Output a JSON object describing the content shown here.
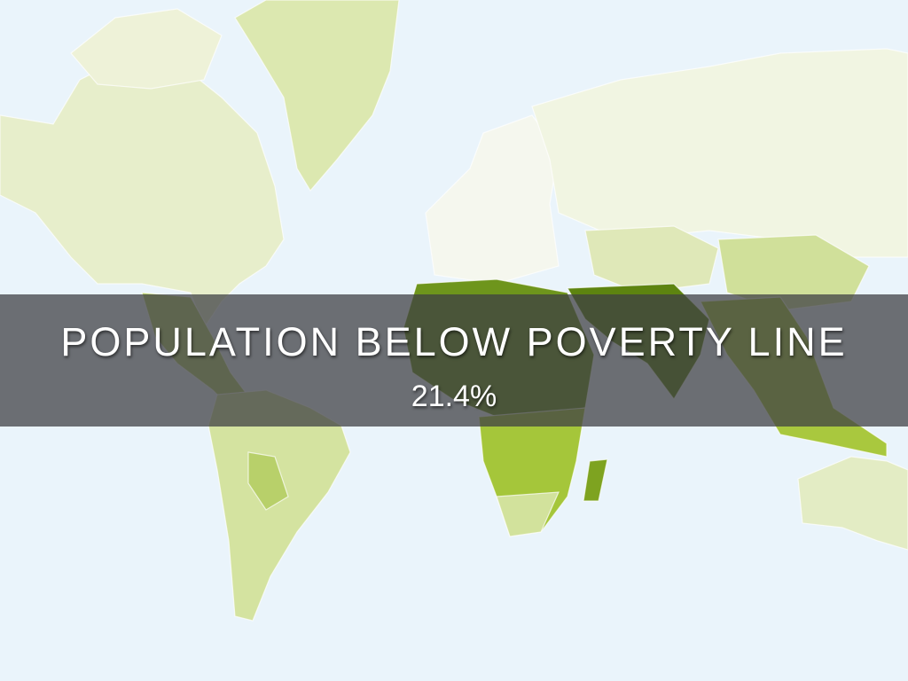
{
  "slide": {
    "title": "POPULATION BELOW POVERTY LINE",
    "value": "21.4%"
  },
  "map": {
    "ocean_color": "#eaf4fb",
    "scale_colors": [
      "#f4f6ec",
      "#e3ecc4",
      "#d2e29c",
      "#a9c83e",
      "#7ea320",
      "#5d8410"
    ]
  }
}
